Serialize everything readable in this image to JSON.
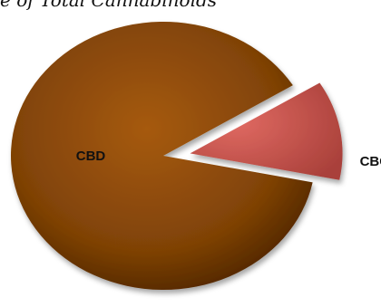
{
  "chart_data": {
    "type": "pie",
    "title": "e of Total Cannabinoids",
    "slices": [
      {
        "label": "CBD",
        "value": 88,
        "color": "#8a4704",
        "exploded": false
      },
      {
        "label": "CBC",
        "value": 12,
        "color": "#c9504a",
        "exploded": true
      }
    ],
    "legend": "none"
  }
}
